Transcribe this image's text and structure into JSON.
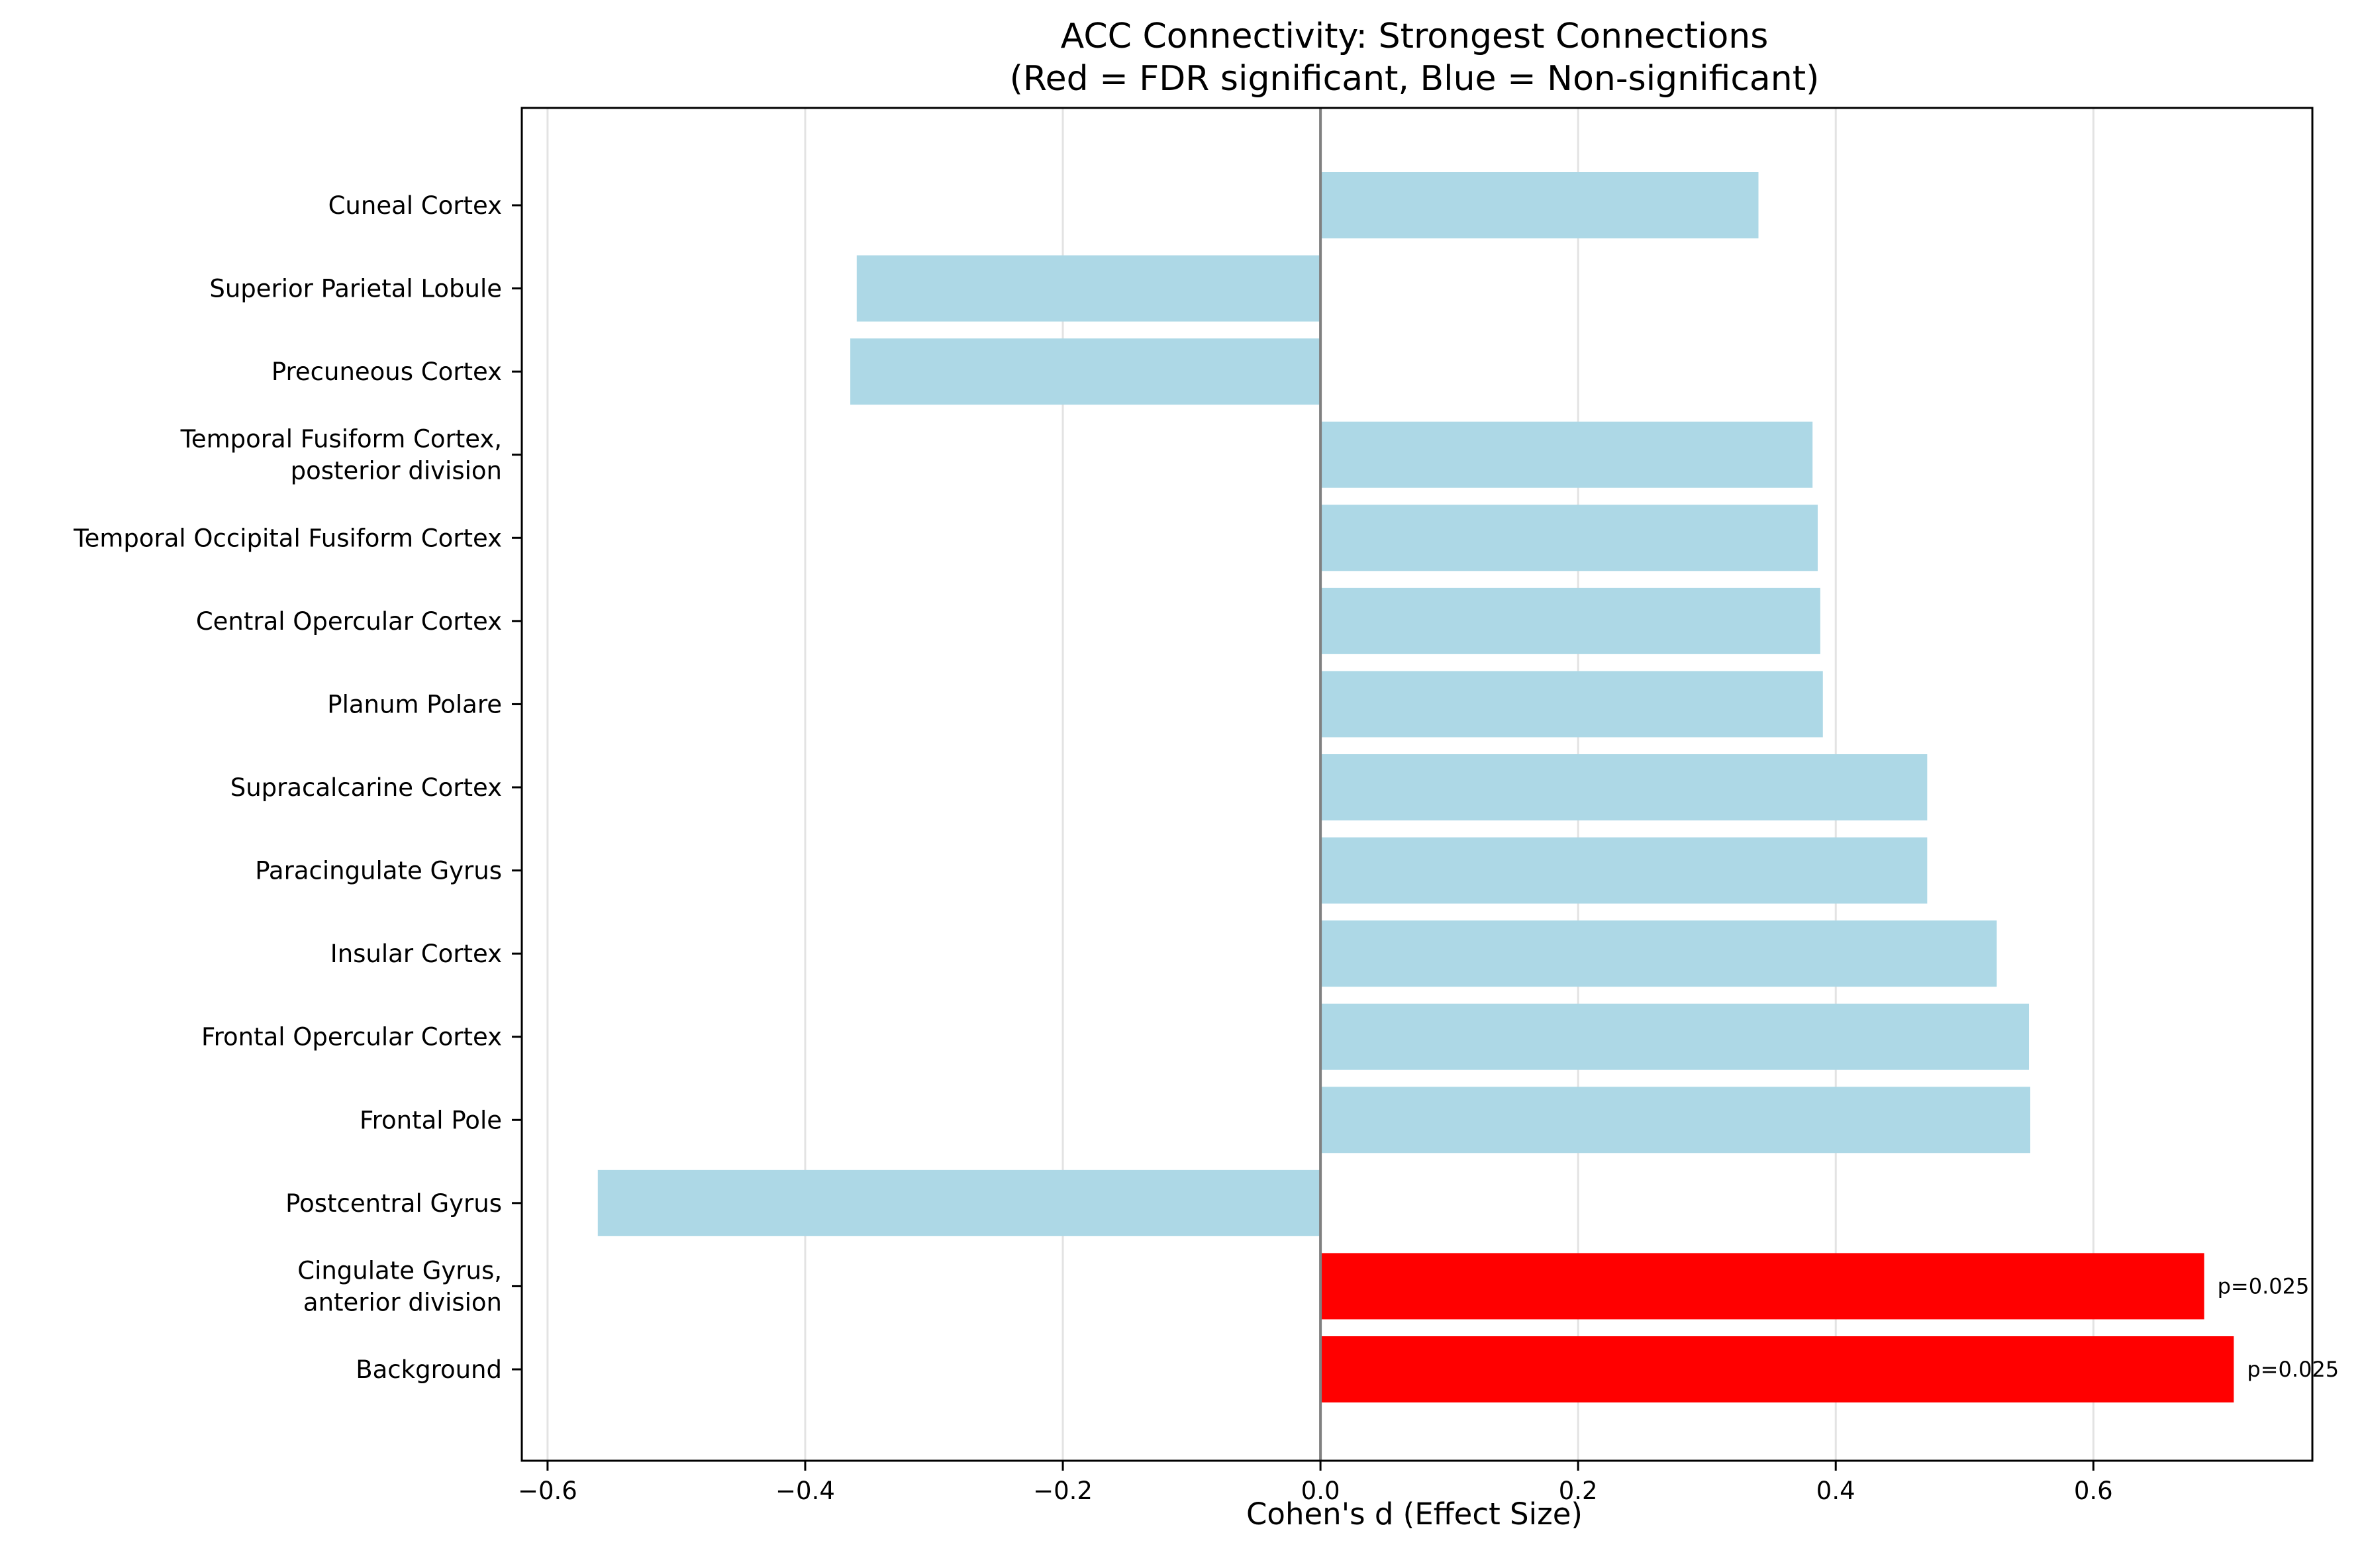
{
  "chart_data": {
    "type": "bar",
    "orientation": "horizontal",
    "title": "ACC Connectivity: Strongest Connections",
    "subtitle": "(Red = FDR significant, Blue = Non-significant)",
    "xlabel": "Cohen's d (Effect Size)",
    "ylabel": "",
    "xlim": [
      -0.62,
      0.77
    ],
    "xticks": [
      -0.6,
      -0.4,
      -0.2,
      0.0,
      0.2,
      0.4,
      0.6
    ],
    "xtick_labels": [
      "−0.6",
      "−0.4",
      "−0.2",
      "0.0",
      "0.2",
      "0.4",
      "0.6"
    ],
    "grid": "vertical",
    "colors": {
      "significant": "#ff0000",
      "non_significant": "#add8e6"
    },
    "bars": [
      {
        "category": [
          "Cuneal Cortex"
        ],
        "value": 0.34,
        "significant": false,
        "annotation": ""
      },
      {
        "category": [
          "Superior Parietal Lobule"
        ],
        "value": -0.36,
        "significant": false,
        "annotation": ""
      },
      {
        "category": [
          "Precuneous Cortex"
        ],
        "value": -0.365,
        "significant": false,
        "annotation": ""
      },
      {
        "category": [
          "Temporal Fusiform Cortex,",
          "posterior division"
        ],
        "value": 0.382,
        "significant": false,
        "annotation": ""
      },
      {
        "category": [
          "Temporal Occipital Fusiform Cortex"
        ],
        "value": 0.386,
        "significant": false,
        "annotation": ""
      },
      {
        "category": [
          "Central Opercular Cortex"
        ],
        "value": 0.388,
        "significant": false,
        "annotation": ""
      },
      {
        "category": [
          "Planum Polare"
        ],
        "value": 0.39,
        "significant": false,
        "annotation": ""
      },
      {
        "category": [
          "Supracalcarine Cortex"
        ],
        "value": 0.471,
        "significant": false,
        "annotation": ""
      },
      {
        "category": [
          "Paracingulate Gyrus"
        ],
        "value": 0.471,
        "significant": false,
        "annotation": ""
      },
      {
        "category": [
          "Insular Cortex"
        ],
        "value": 0.525,
        "significant": false,
        "annotation": ""
      },
      {
        "category": [
          "Frontal Opercular Cortex"
        ],
        "value": 0.55,
        "significant": false,
        "annotation": ""
      },
      {
        "category": [
          "Frontal Pole"
        ],
        "value": 0.551,
        "significant": false,
        "annotation": ""
      },
      {
        "category": [
          "Postcentral Gyrus"
        ],
        "value": -0.561,
        "significant": false,
        "annotation": ""
      },
      {
        "category": [
          "Cingulate Gyrus,",
          "anterior division"
        ],
        "value": 0.686,
        "significant": true,
        "annotation": "p=0.025"
      },
      {
        "category": [
          "Background"
        ],
        "value": 0.709,
        "significant": true,
        "annotation": "p=0.025"
      }
    ]
  }
}
